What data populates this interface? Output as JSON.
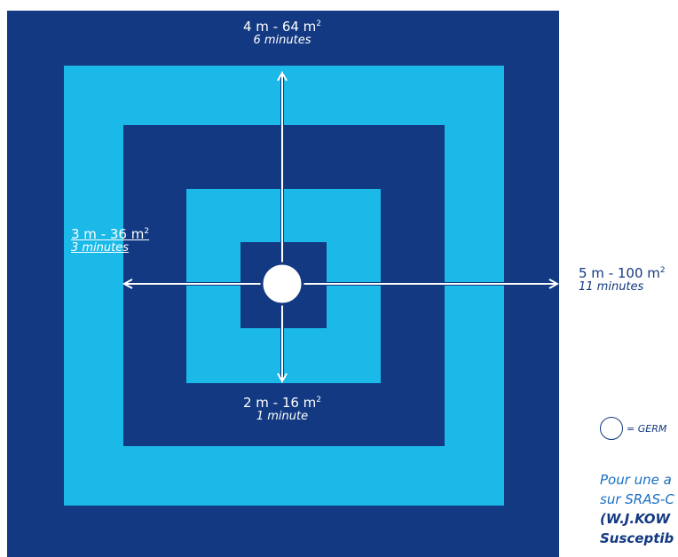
{
  "labels": {
    "top": {
      "main": "4 m - 64 m",
      "sup": "2",
      "sub": "6 minutes"
    },
    "left": {
      "main": "3 m - 36 m",
      "sup": "2",
      "sub": "3 minutes"
    },
    "bottom": {
      "main": "2 m - 16 m",
      "sup": "2",
      "sub": "1 minute"
    },
    "right": {
      "main": "5 m - 100 m",
      "sup": "2",
      "sub": "11 minutes"
    }
  },
  "legend": {
    "text": "= GERM"
  },
  "note": {
    "line1": "Pour une a",
    "line2": "sur SRAS-C",
    "line3": "(W.J.KOW",
    "line4": "Susceptib"
  },
  "colors": {
    "dark_blue": "#133982",
    "light_blue": "#1bb9e8",
    "arrow": "#ffffff"
  }
}
